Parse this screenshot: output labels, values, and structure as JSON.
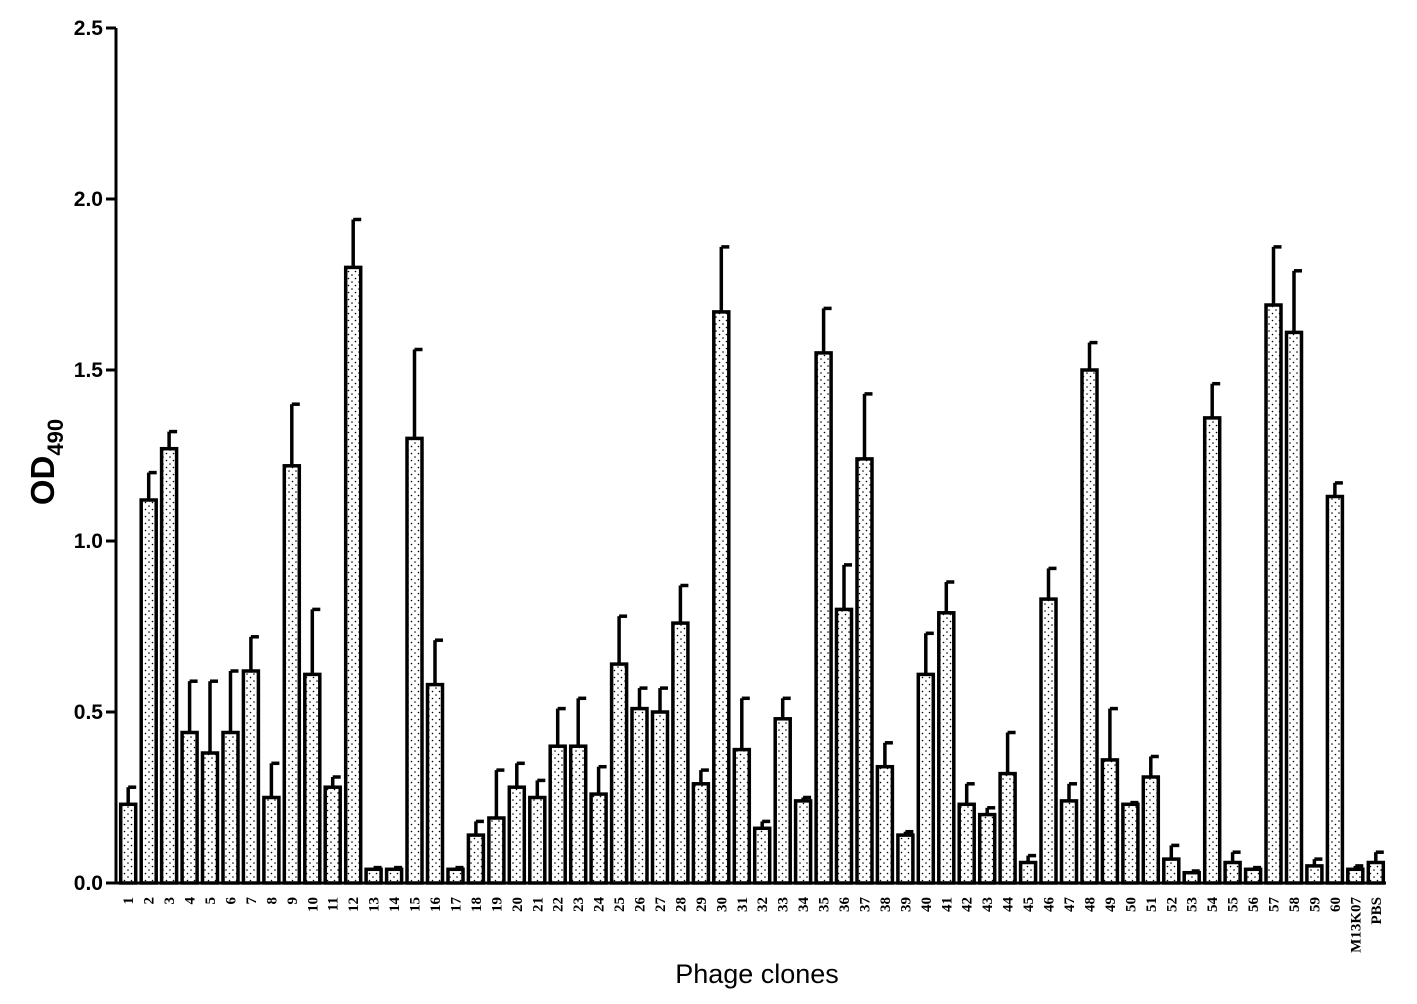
{
  "chart_data": {
    "type": "bar",
    "title": "",
    "xlabel": "Phage clones",
    "ylabel": {
      "main": "OD",
      "sub": "490"
    },
    "ylim": [
      0,
      2.5
    ],
    "yticks": [
      "0.0",
      "0.5",
      "1.0",
      "1.5",
      "2.0",
      "2.5"
    ],
    "grid": false,
    "legend": "none",
    "colors": {
      "bar_fill": "#ffffff",
      "bar_stroke": "#000000",
      "dots": "#000000"
    },
    "categories": [
      "1",
      "2",
      "3",
      "4",
      "5",
      "6",
      "7",
      "8",
      "9",
      "10",
      "11",
      "12",
      "13",
      "14",
      "15",
      "16",
      "17",
      "18",
      "19",
      "20",
      "21",
      "22",
      "23",
      "24",
      "25",
      "26",
      "27",
      "28",
      "29",
      "30",
      "31",
      "32",
      "33",
      "34",
      "35",
      "36",
      "37",
      "38",
      "39",
      "40",
      "41",
      "42",
      "43",
      "44",
      "45",
      "46",
      "47",
      "48",
      "49",
      "50",
      "51",
      "52",
      "53",
      "54",
      "55",
      "56",
      "57",
      "58",
      "59",
      "60",
      "M13K07",
      "PBS"
    ],
    "values": [
      0.23,
      1.12,
      1.27,
      0.44,
      0.38,
      0.44,
      0.62,
      0.25,
      1.22,
      0.61,
      0.28,
      1.8,
      0.04,
      0.04,
      1.3,
      0.58,
      0.04,
      0.14,
      0.19,
      0.28,
      0.25,
      0.4,
      0.4,
      0.26,
      0.64,
      0.51,
      0.5,
      0.76,
      0.29,
      1.67,
      0.39,
      0.16,
      0.48,
      0.24,
      1.55,
      0.8,
      1.24,
      0.34,
      0.14,
      0.61,
      0.79,
      0.23,
      0.2,
      0.32,
      0.06,
      0.83,
      0.24,
      1.5,
      0.36,
      0.23,
      0.31,
      0.07,
      0.03,
      1.36,
      0.06,
      0.04,
      1.69,
      1.61,
      0.05,
      1.13,
      0.04,
      0.06
    ],
    "errors": [
      0.05,
      0.08,
      0.05,
      0.15,
      0.21,
      0.18,
      0.1,
      0.1,
      0.18,
      0.19,
      0.03,
      0.14,
      0.005,
      0.005,
      0.26,
      0.13,
      0.005,
      0.04,
      0.14,
      0.07,
      0.05,
      0.11,
      0.14,
      0.08,
      0.14,
      0.06,
      0.07,
      0.11,
      0.04,
      0.19,
      0.15,
      0.02,
      0.06,
      0.01,
      0.13,
      0.13,
      0.19,
      0.07,
      0.01,
      0.12,
      0.09,
      0.06,
      0.02,
      0.12,
      0.02,
      0.09,
      0.05,
      0.08,
      0.15,
      0.005,
      0.06,
      0.04,
      0.005,
      0.1,
      0.03,
      0.005,
      0.17,
      0.18,
      0.02,
      0.04,
      0.01,
      0.03
    ]
  }
}
